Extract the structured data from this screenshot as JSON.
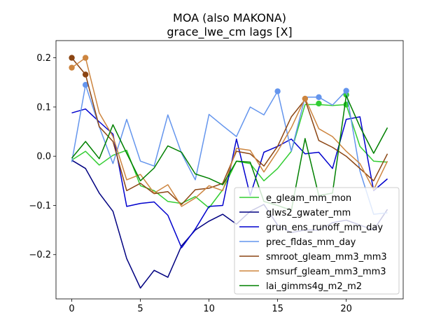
{
  "chart_data": {
    "type": "line",
    "title": "MOA (also MAKONA)",
    "subtitle": "grace_lwe_cm lags [X]",
    "xlabel": "",
    "ylabel": "",
    "xlim": [
      -1.15,
      24.15
    ],
    "ylim": [
      -0.29,
      0.235
    ],
    "x_ticks": [
      0,
      5,
      10,
      15,
      20
    ],
    "y_ticks": [
      -0.2,
      -0.1,
      0.0,
      0.1,
      0.2
    ],
    "y_tick_labels": [
      "−0.2",
      "−0.1",
      "0.0",
      "0.1",
      "0.2"
    ],
    "legend_position": "lower-right",
    "x": [
      0,
      1,
      2,
      3,
      4,
      5,
      6,
      7,
      8,
      9,
      10,
      11,
      12,
      13,
      14,
      15,
      16,
      17,
      18,
      19,
      20,
      21,
      22,
      23
    ],
    "series": [
      {
        "name": "e_gleam_mm_mon",
        "color": "#32cd32",
        "values": [
          -0.008,
          0.01,
          -0.018,
          0.002,
          0.012,
          -0.06,
          -0.07,
          -0.092,
          -0.096,
          -0.082,
          -0.105,
          -0.068,
          -0.01,
          -0.015,
          -0.05,
          -0.025,
          0.01,
          0.105,
          0.105,
          0.103,
          0.105,
          0.02,
          -0.01,
          -0.012
        ],
        "markers": [
          {
            "x": 18,
            "y": 0.107
          },
          {
            "x": 20,
            "y": 0.105
          },
          {
            "x": 20,
            "y": 0.125
          }
        ]
      },
      {
        "name": "glws2_gwater_mm",
        "color": "#000080",
        "values": [
          -0.008,
          -0.025,
          -0.075,
          -0.112,
          -0.208,
          -0.268,
          -0.232,
          -0.246,
          -0.182,
          -0.15,
          -0.132,
          -0.118,
          -0.138,
          -0.112,
          -0.098,
          -0.14,
          -0.155,
          -0.15,
          -0.15,
          -0.135,
          -0.13,
          -0.14,
          -0.15,
          -0.108
        ],
        "markers": []
      },
      {
        "name": "grun_ens_runoff_mm_day",
        "color": "#0000cd",
        "values": [
          0.088,
          0.096,
          0.07,
          0.045,
          -0.102,
          -0.096,
          -0.093,
          -0.12,
          -0.186,
          -0.148,
          -0.102,
          -0.1,
          0.035,
          -0.08,
          0.008,
          0.02,
          0.035,
          0.005,
          0.008,
          -0.025,
          0.075,
          0.08,
          -0.07,
          -0.046
        ],
        "markers": []
      },
      {
        "name": "prec_fldas_mm_day",
        "color": "#6495ed",
        "values": [
          -0.012,
          0.145,
          0.06,
          -0.015,
          0.075,
          -0.01,
          -0.02,
          0.084,
          0.006,
          -0.048,
          0.085,
          0.062,
          0.04,
          0.1,
          0.084,
          0.132,
          0.01,
          0.12,
          0.12,
          0.104,
          0.133,
          -0.03,
          -0.118,
          -0.115
        ],
        "markers": [
          {
            "x": 1,
            "y": 0.145
          },
          {
            "x": 15,
            "y": 0.132
          },
          {
            "x": 18,
            "y": 0.12
          },
          {
            "x": 20,
            "y": 0.133
          }
        ]
      },
      {
        "name": "smroot_gleam_mm3_mm3",
        "color": "#8b4513",
        "values": [
          0.2,
          0.166,
          0.06,
          0.03,
          -0.07,
          -0.055,
          -0.076,
          -0.072,
          -0.098,
          -0.068,
          -0.065,
          -0.055,
          0.01,
          0.005,
          -0.02,
          0.02,
          0.08,
          0.115,
          0.032,
          0.018,
          0.0,
          -0.025,
          -0.05,
          0.005
        ],
        "markers": [
          {
            "x": 0,
            "y": 0.2
          },
          {
            "x": 1,
            "y": 0.166
          }
        ]
      },
      {
        "name": "smsurf_gleam_mm3_mm3",
        "color": "#cd853f",
        "values": [
          0.18,
          0.2,
          0.088,
          0.04,
          -0.048,
          -0.037,
          -0.075,
          -0.058,
          -0.102,
          -0.085,
          -0.06,
          -0.07,
          0.016,
          0.012,
          -0.032,
          0.01,
          0.058,
          0.118,
          0.056,
          0.04,
          0.01,
          -0.015,
          -0.068,
          -0.01
        ],
        "markers": [
          {
            "x": 0,
            "y": 0.18
          },
          {
            "x": 1,
            "y": 0.2
          },
          {
            "x": 17,
            "y": 0.117
          }
        ]
      },
      {
        "name": "lai_gimms4g_m2_m2",
        "color": "#008000",
        "values": [
          -0.004,
          0.03,
          -0.005,
          0.064,
          0.006,
          -0.05,
          -0.024,
          0.021,
          0.008,
          -0.036,
          -0.045,
          -0.058,
          -0.01,
          -0.012,
          -0.092,
          -0.1,
          -0.11,
          0.036,
          -0.08,
          -0.075,
          0.123,
          0.06,
          0.006,
          0.058
        ],
        "markers": []
      }
    ]
  }
}
